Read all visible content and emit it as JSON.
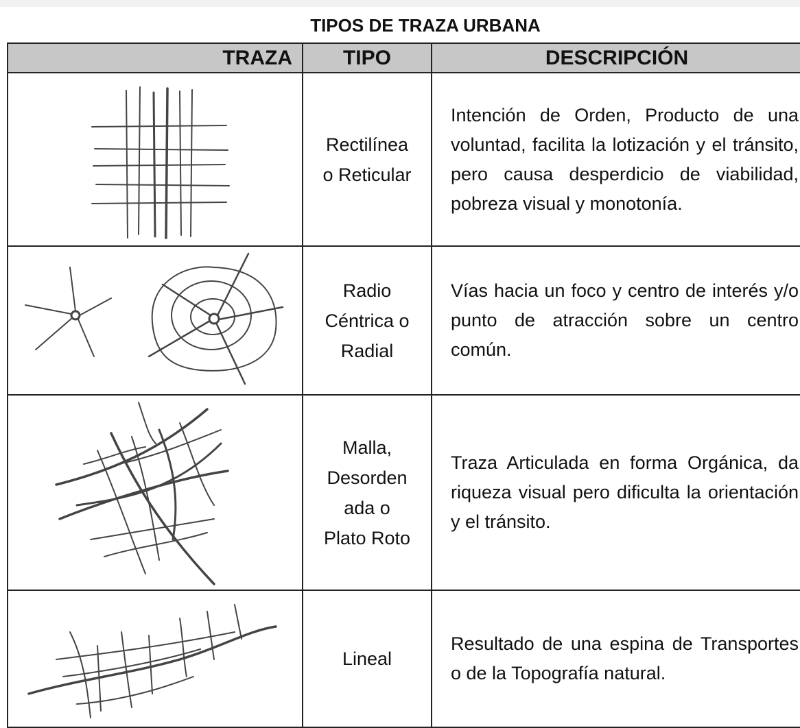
{
  "header": {
    "title": "TIPOS DE TRAZA URBANA"
  },
  "table": {
    "columns": [
      "TRAZA",
      "TIPO",
      "DESCRIPCIÓN"
    ],
    "rows": [
      {
        "tipo": [
          "Rectilínea",
          "o Reticular"
        ],
        "descripcion": "Intención de Orden, Producto de una voluntad, facilita la lotización y el tránsito, pero causa desperdicio de viabilidad, pobreza visual y monotonía."
      },
      {
        "tipo": [
          "Radio",
          "Céntrica o",
          "Radial"
        ],
        "descripcion": "Vías hacia un foco y centro de interés y/o punto de atracción sobre un centro común."
      },
      {
        "tipo": [
          "Malla,",
          "Desorden",
          "ada o",
          "Plato Roto"
        ],
        "descripcion": "Traza Articulada en forma Orgánica, da riqueza visual pero dificulta la orientación y el tránsito."
      },
      {
        "tipo": [
          "Lineal"
        ],
        "descripcion": "Resultado de una espina de Transportes o de la Topografía natural."
      }
    ]
  }
}
